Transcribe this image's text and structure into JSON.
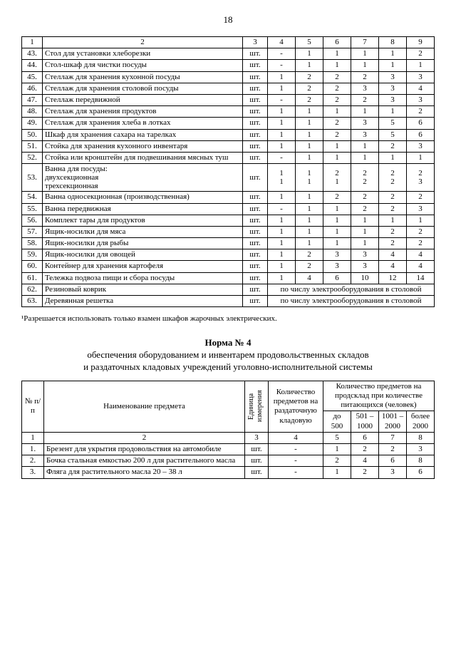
{
  "pageNumber": "18",
  "table1": {
    "headerRow": [
      "1",
      "2",
      "3",
      "4",
      "5",
      "6",
      "7",
      "8",
      "9"
    ],
    "rows": [
      {
        "n": "43.",
        "name": "Стол для установки хлеборезки",
        "u": "шт.",
        "v": [
          "-",
          "1",
          "1",
          "1",
          "1",
          "2"
        ]
      },
      {
        "n": "44.",
        "name": "Стол-шкаф для чистки посуды",
        "u": "шт.",
        "v": [
          "-",
          "1",
          "1",
          "1",
          "1",
          "1"
        ]
      },
      {
        "n": "45.",
        "name": "Стеллаж для хранения кухонной посуды",
        "u": "шт.",
        "v": [
          "1",
          "2",
          "2",
          "2",
          "3",
          "3"
        ]
      },
      {
        "n": "46.",
        "name": "Стеллаж для хранения столовой посуды",
        "u": "шт.",
        "v": [
          "1",
          "2",
          "2",
          "3",
          "3",
          "4"
        ]
      },
      {
        "n": "47.",
        "name": "Стеллаж передвижной",
        "u": "шт.",
        "v": [
          "-",
          "2",
          "2",
          "2",
          "3",
          "3"
        ]
      },
      {
        "n": "48.",
        "name": "Стеллаж для хранения продуктов",
        "u": "шт.",
        "v": [
          "1",
          "1",
          "1",
          "1",
          "1",
          "2"
        ]
      },
      {
        "n": "49.",
        "name": "Стеллаж для хранения хлеба в лотках",
        "u": "шт.",
        "v": [
          "1",
          "1",
          "2",
          "3",
          "5",
          "6"
        ]
      },
      {
        "n": "50.",
        "name": "Шкаф для хранения сахара на тарелках",
        "u": "шт.",
        "v": [
          "1",
          "1",
          "2",
          "3",
          "5",
          "6"
        ]
      },
      {
        "n": "51.",
        "name": "Стойка для хранения кухонного инвентаря",
        "u": "шт.",
        "v": [
          "1",
          "1",
          "1",
          "1",
          "2",
          "3"
        ]
      },
      {
        "n": "52.",
        "name": "Стойка или кронштейн для подвешивания мясных туш",
        "u": "шт.",
        "v": [
          "-",
          "1",
          "1",
          "1",
          "1",
          "1"
        ]
      },
      {
        "n": "53.",
        "name": "Ванна для посуды:\nдвухсекционная\nтрехсекционная",
        "u": "шт.",
        "v": [
          "1\n1",
          "1\n1",
          "2\n1",
          "2\n2",
          "2\n2",
          "2\n3"
        ]
      },
      {
        "n": "54.",
        "name": "Ванна односекционная (производственная)",
        "u": "шт.",
        "v": [
          "1",
          "1",
          "2",
          "2",
          "2",
          "2"
        ]
      },
      {
        "n": "55.",
        "name": "Ванна передвижная",
        "u": "шт.",
        "v": [
          "-",
          "1",
          "1",
          "2",
          "2",
          "3"
        ]
      },
      {
        "n": "56.",
        "name": "Комплект тары для продуктов",
        "u": "шт.",
        "v": [
          "1",
          "1",
          "1",
          "1",
          "1",
          "1"
        ]
      },
      {
        "n": "57.",
        "name": "Ящик-носилки для мяса",
        "u": "шт.",
        "v": [
          "1",
          "1",
          "1",
          "1",
          "2",
          "2"
        ]
      },
      {
        "n": "58.",
        "name": "Ящик-носилки для рыбы",
        "u": "шт.",
        "v": [
          "1",
          "1",
          "1",
          "1",
          "2",
          "2"
        ]
      },
      {
        "n": "59.",
        "name": "Ящик-носилки для овощей",
        "u": "шт.",
        "v": [
          "1",
          "2",
          "3",
          "3",
          "4",
          "4"
        ]
      },
      {
        "n": "60.",
        "name": "Контейнер для хранения картофеля",
        "u": "шт.",
        "v": [
          "1",
          "2",
          "3",
          "3",
          "4",
          "4"
        ]
      },
      {
        "n": "61.",
        "name": "Тележка подвоза пищи и сбора посуды",
        "u": "шт.",
        "v": [
          "1",
          "4",
          "6",
          "10",
          "12",
          "14"
        ]
      }
    ],
    "spanRows": [
      {
        "n": "62.",
        "name": "Резиновый коврик",
        "u": "шт.",
        "note": "по числу электрооборудования в столовой"
      },
      {
        "n": "63.",
        "name": "Деревянная решетка",
        "u": "шт.",
        "note": "по числу электрооборудования в столовой"
      }
    ]
  },
  "footnote": "¹Разрешается использовать только взамен шкафов жарочных электрических.",
  "section2": {
    "normTitle": "Норма № 4",
    "subtitle1": "обеспечения оборудованием и инвентарем продовольственных складов",
    "subtitle2": "и раздаточных кладовых учреждений уголовно-исполнительной системы"
  },
  "table2": {
    "headers": {
      "num": "№ п/п",
      "name": "Наименование предмета",
      "unit": "Единица измерения",
      "qty": "Количество предметов на раздаточную кладовую",
      "group": "Количество предметов на продсклад при количестве питающихся (человек)",
      "ranges": [
        "до 500",
        "501 – 1000",
        "1001 – 2000",
        "более 2000"
      ]
    },
    "numRow": [
      "1",
      "2",
      "3",
      "4",
      "5",
      "6",
      "7",
      "8"
    ],
    "rows": [
      {
        "n": "1.",
        "name": "Брезент для укрытия продовольствия на автомобиле",
        "u": "шт.",
        "q": "-",
        "v": [
          "1",
          "2",
          "2",
          "3"
        ]
      },
      {
        "n": "2.",
        "name": "Бочка стальная емкостью 200 л для растительного масла",
        "u": "шт.",
        "q": "-",
        "v": [
          "2",
          "4",
          "6",
          "8"
        ]
      },
      {
        "n": "3.",
        "name": "Фляга для растительного масла 20 – 38 л",
        "u": "шт.",
        "q": "-",
        "v": [
          "1",
          "2",
          "3",
          "6"
        ]
      }
    ]
  }
}
